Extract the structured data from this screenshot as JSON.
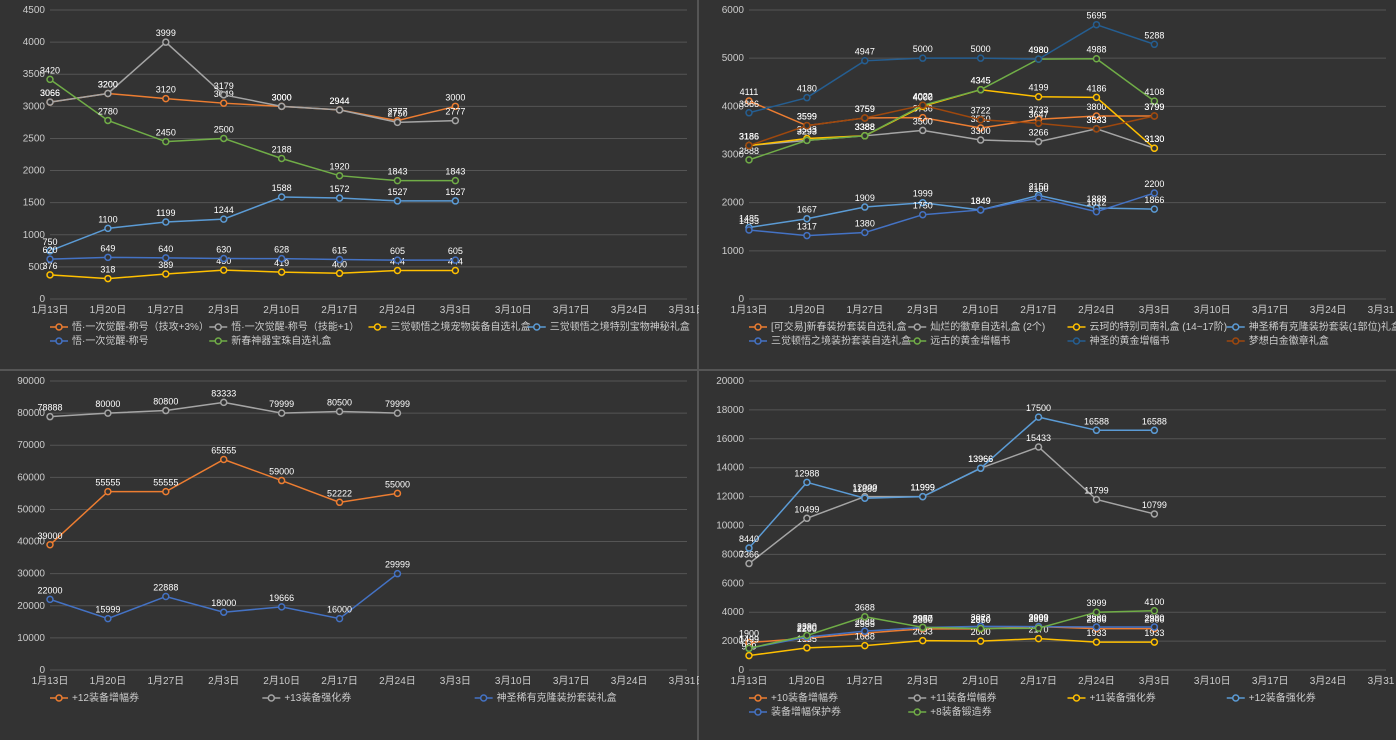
{
  "background_color": "#333333",
  "grid_color": "#555555",
  "axis_fontsize": 10,
  "datalabel_fontsize": 9,
  "legend_fontsize": 10,
  "x_categories": [
    "1月13日",
    "1月20日",
    "1月27日",
    "2月3日",
    "2月10日",
    "2月17日",
    "2月24日",
    "3月3日",
    "3月10日",
    "3月17日",
    "3月24日",
    "3月31日"
  ],
  "charts": [
    {
      "id": "top-left",
      "type": "line",
      "ylim": [
        0,
        4500
      ],
      "ytick_step": 500,
      "series": [
        {
          "name": "悟·一次觉醒-称号（技攻+3%）",
          "color": "#ed7d31",
          "values": [
            3066,
            3200,
            3120,
            3049,
            3000,
            2944,
            2777,
            3000
          ],
          "labels": [
            3066,
            3200,
            3120,
            3049,
            3000,
            2944,
            2777,
            3000
          ]
        },
        {
          "name": "悟·一次觉醒-称号（技能+1）",
          "color": "#a5a5a5",
          "values": [
            3066,
            3200,
            3999,
            3179,
            3000,
            2944,
            2750,
            2777
          ],
          "labels": [
            3066,
            3200,
            3999,
            3179,
            3000,
            2944,
            2750,
            2777
          ]
        },
        {
          "name": "三觉顿悟之境宠物装备自选礼盒",
          "color": "#ffc000",
          "values": [
            376,
            318,
            389,
            450,
            419,
            400,
            444,
            444
          ],
          "labels": [
            376,
            318,
            389,
            450,
            419,
            400,
            444,
            444
          ]
        },
        {
          "name": "三觉顿悟之境特别宝物神秘礼盒",
          "color": "#5b9bd5",
          "values": [
            750,
            1100,
            1199,
            1244,
            1588,
            1572,
            1527,
            1527
          ],
          "labels": [
            750,
            1100,
            1199,
            1244,
            1588,
            1572,
            1527,
            1527
          ]
        },
        {
          "name": "悟·一次觉醒-称号",
          "color": "#4472c4",
          "values": [
            620,
            649,
            640,
            630,
            628,
            615,
            605,
            605
          ],
          "labels": [
            620,
            649,
            640,
            630,
            628,
            615,
            605,
            605
          ]
        },
        {
          "name": "新春神器宝珠自选礼盒",
          "color": "#70ad47",
          "values": [
            3420,
            2780,
            2450,
            2500,
            2188,
            1920,
            1843,
            1843
          ],
          "labels": [
            3420,
            2780,
            2450,
            2500,
            2188,
            1920,
            1843,
            1843
          ]
        }
      ]
    },
    {
      "id": "top-right",
      "type": "line",
      "ylim": [
        0,
        6000
      ],
      "ytick_step": 1000,
      "series": [
        {
          "name": "[可交易]新春装扮套装自选礼盒",
          "color": "#ed7d31",
          "values": [
            4111,
            3599,
            3759,
            3766,
            3550,
            3733,
            3800,
            3799
          ],
          "labels": [
            4111,
            3599,
            3759,
            3766,
            3550,
            3733,
            3800,
            3799
          ]
        },
        {
          "name": "灿烂的徽章自选礼盒 (2个)",
          "color": "#a5a5a5",
          "values": [
            3186,
            3293,
            3388,
            3500,
            3300,
            3266,
            3533,
            3130
          ],
          "labels": [
            3186,
            3293,
            3388,
            3500,
            3300,
            3266,
            3533,
            3130
          ]
        },
        {
          "name": "云珂的特别司南礼盒 (14~17阶)",
          "color": "#ffc000",
          "values": [
            3186,
            3333,
            3388,
            4000,
            4345,
            4199,
            4186,
            3130
          ],
          "labels": [
            3186,
            3333,
            3388,
            4000,
            4345,
            4199,
            4186,
            3130
          ]
        },
        {
          "name": "神圣稀有克隆装扮套装(1部位)礼盒",
          "color": "#5b9bd5",
          "values": [
            1485,
            1667,
            1909,
            1999,
            1849,
            2150,
            1888,
            1866
          ],
          "labels": [
            1485,
            1667,
            1909,
            1999,
            1849,
            2150,
            1888,
            1866
          ]
        },
        {
          "name": "三觉顿悟之境装扮套装自选礼盒",
          "color": "#4472c4",
          "values": [
            1433,
            1317,
            1380,
            1750,
            1849,
            2100,
            1812,
            2200
          ],
          "labels": [
            1433,
            1317,
            1380,
            1750,
            1849,
            2100,
            1812,
            2200
          ]
        },
        {
          "name": "远古的黄金增幅书",
          "color": "#70ad47",
          "values": [
            2888,
            3293,
            3388,
            4022,
            4345,
            4980,
            4988,
            4108
          ],
          "labels": [
            2888,
            3293,
            3388,
            4022,
            4345,
            4980,
            4988,
            4108
          ]
        },
        {
          "name": "神圣的黄金增幅书",
          "color": "#255e91",
          "values": [
            3866,
            4180,
            4947,
            5000,
            5000,
            4980,
            5695,
            5288
          ],
          "labels": [
            3866,
            4180,
            4947,
            5000,
            5000,
            4980,
            5695,
            5288
          ]
        },
        {
          "name": "梦想白金徽章礼盒",
          "color": "#9e480e",
          "values": [
            3186,
            3599,
            3759,
            4022,
            3722,
            3647,
            3533,
            3799
          ],
          "labels": [
            3186,
            3599,
            3759,
            4022,
            3722,
            3647,
            3533,
            3799
          ]
        }
      ]
    },
    {
      "id": "bottom-left",
      "type": "line",
      "ylim": [
        0,
        90000
      ],
      "ytick_step": 10000,
      "series": [
        {
          "name": "+12装备增幅券",
          "color": "#ed7d31",
          "values": [
            39000,
            55555,
            55555,
            65555,
            59000,
            52222,
            55000
          ],
          "labels": [
            39000,
            55555,
            55555,
            65555,
            59000,
            52222,
            55000
          ]
        },
        {
          "name": "+13装备强化券",
          "color": "#a5a5a5",
          "values": [
            78888,
            80000,
            80800,
            83333,
            79999,
            80500,
            79999
          ],
          "labels": [
            78888,
            80000,
            80800,
            83333,
            79999,
            80500,
            79999
          ]
        },
        {
          "name": "神圣稀有克隆装扮套装礼盒",
          "color": "#4472c4",
          "values": [
            22000,
            15999,
            22888,
            18000,
            19666,
            16000,
            29999
          ],
          "labels": [
            22000,
            15999,
            22888,
            18000,
            19666,
            16000,
            29999
          ]
        }
      ]
    },
    {
      "id": "bottom-right",
      "type": "line",
      "ylim": [
        0,
        20000
      ],
      "ytick_step": 2000,
      "series": [
        {
          "name": "+10装备增幅券",
          "color": "#ed7d31",
          "values": [
            1900,
            2200,
            2555,
            2850,
            2850,
            3000,
            2866,
            2866
          ],
          "labels": [
            1900,
            2200,
            2555,
            2850,
            2850,
            3000,
            2866,
            2866
          ]
        },
        {
          "name": "+11装备增幅券",
          "color": "#a5a5a5",
          "values": [
            7366,
            10499,
            12000,
            11999,
            13966,
            15433,
            11799,
            10799
          ],
          "labels": [
            7366,
            10499,
            12000,
            11999,
            13966,
            15433,
            11799,
            10799
          ]
        },
        {
          "name": "+11装备强化券",
          "color": "#ffc000",
          "values": [
            999,
            1535,
            1688,
            2033,
            2000,
            2170,
            1933,
            1933
          ],
          "labels": [
            999,
            1535,
            1688,
            2033,
            2000,
            2170,
            1933,
            1933
          ]
        },
        {
          "name": "+12装备强化券",
          "color": "#5b9bd5",
          "values": [
            8440,
            12988,
            11888,
            11999,
            13966,
            17500,
            16588,
            16588
          ],
          "labels": [
            8440,
            12988,
            11888,
            11999,
            13966,
            17500,
            16588,
            16588
          ]
        },
        {
          "name": "装备增幅保护券",
          "color": "#4472c4",
          "values": [
            1499,
            2280,
            2688,
            2937,
            3022,
            2999,
            2980,
            2980
          ],
          "labels": [
            1499,
            2280,
            2688,
            2937,
            3022,
            2999,
            2980,
            2980
          ]
        },
        {
          "name": "+8装备锻造券",
          "color": "#70ad47",
          "values": [
            1499,
            2390,
            3688,
            2950,
            2870,
            2893,
            3999,
            4100
          ],
          "labels": [
            1499,
            2390,
            3688,
            2950,
            2870,
            2893,
            3999,
            4100
          ]
        }
      ]
    }
  ]
}
